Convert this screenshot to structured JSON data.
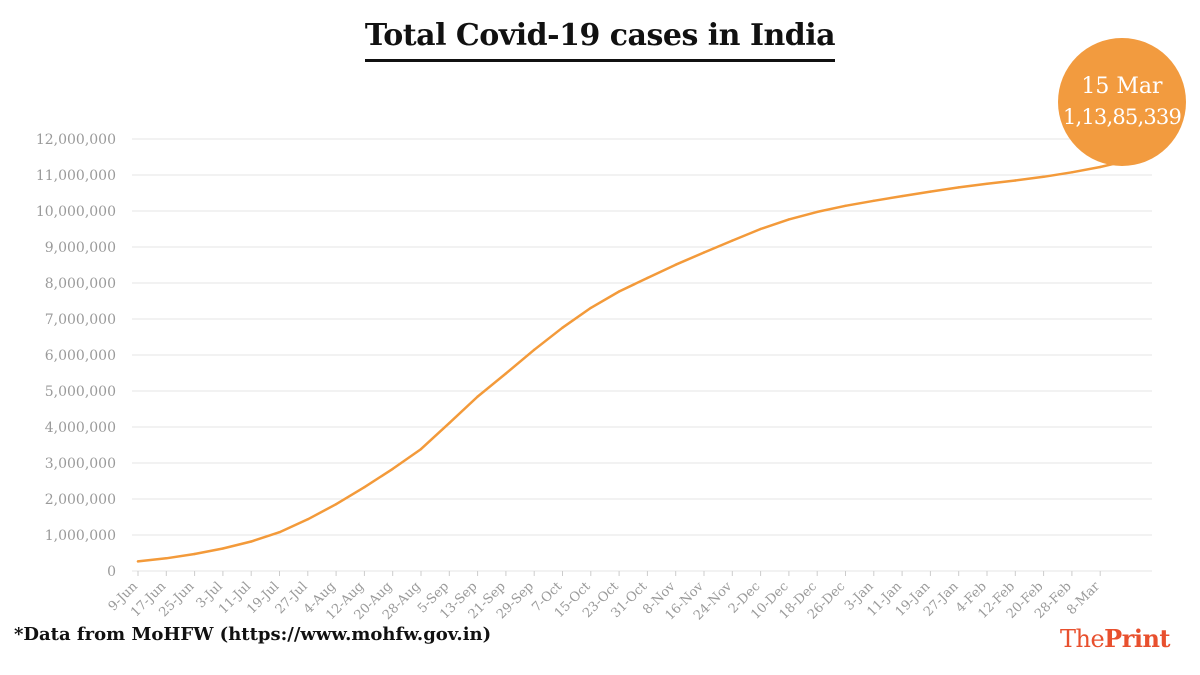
{
  "page": {
    "title": "Total Covid-19 cases in India",
    "footnote": "*Data from MoHFW (https://www.mohfw.gov.in)",
    "brand": {
      "part1": "The",
      "part2": "Print"
    },
    "callout": {
      "date": "15 Mar",
      "value": "1,13,85,339"
    }
  },
  "colors": {
    "line": "#f39a3a",
    "callout": "#f29b3f",
    "grid": "#e6e6e6",
    "tick_text": "#9a9a9a",
    "brand": "#e8502e"
  },
  "chart_data": {
    "type": "line",
    "title": "Total Covid-19 cases in India",
    "xlabel": "",
    "ylabel": "",
    "ylim": [
      0,
      12000000
    ],
    "yticks": [
      0,
      1000000,
      2000000,
      3000000,
      4000000,
      5000000,
      6000000,
      7000000,
      8000000,
      9000000,
      10000000,
      11000000,
      12000000
    ],
    "ytick_labels": [
      "0",
      "1,000,000",
      "2,000,000",
      "3,000,000",
      "4,000,000",
      "5,000,000",
      "6,000,000",
      "7,000,000",
      "8,000,000",
      "9,000,000",
      "10,000,000",
      "11,000,000",
      "12,000,000"
    ],
    "grid": true,
    "x_range": [
      "9-Jun",
      "15-Mar"
    ],
    "xtick_labels": [
      "9-Jun",
      "17-Jun",
      "25-Jun",
      "3-Jul",
      "11-Jul",
      "19-Jul",
      "27-Jul",
      "4-Aug",
      "12-Aug",
      "20-Aug",
      "28-Aug",
      "5-Sep",
      "13-Sep",
      "21-Sep",
      "29-Sep",
      "7-Oct",
      "15-Oct",
      "23-Oct",
      "31-Oct",
      "8-Nov",
      "16-Nov",
      "24-Nov",
      "2-Dec",
      "10-Dec",
      "18-Dec",
      "26-Dec",
      "3-Jan",
      "11-Jan",
      "19-Jan",
      "27-Jan",
      "4-Feb",
      "12-Feb",
      "20-Feb",
      "28-Feb",
      "8-Mar"
    ],
    "series": [
      {
        "x": [
          "9-Jun",
          "17-Jun",
          "25-Jun",
          "3-Jul",
          "11-Jul",
          "19-Jul",
          "27-Jul",
          "4-Aug",
          "12-Aug",
          "20-Aug",
          "28-Aug",
          "5-Sep",
          "13-Sep",
          "21-Sep",
          "29-Sep",
          "7-Oct",
          "15-Oct",
          "23-Oct",
          "31-Oct",
          "8-Nov",
          "16-Nov",
          "24-Nov",
          "2-Dec",
          "10-Dec",
          "18-Dec",
          "26-Dec",
          "3-Jan",
          "11-Jan",
          "19-Jan",
          "27-Jan",
          "4-Feb",
          "12-Feb",
          "20-Feb",
          "28-Feb",
          "8-Mar",
          "15-Mar"
        ],
        "values": [
          266000,
          354000,
          473000,
          625000,
          820000,
          1077000,
          1436000,
          1856000,
          2329000,
          2837000,
          3385000,
          4109000,
          4845000,
          5487000,
          6144000,
          6757000,
          7308000,
          7765000,
          8138000,
          8507000,
          8846000,
          9178000,
          9499000,
          9767000,
          9975000,
          10145000,
          10283000,
          10413000,
          10538000,
          10656000,
          10756000,
          10847000,
          10949000,
          11074000,
          11222000,
          11385339
        ]
      }
    ]
  }
}
